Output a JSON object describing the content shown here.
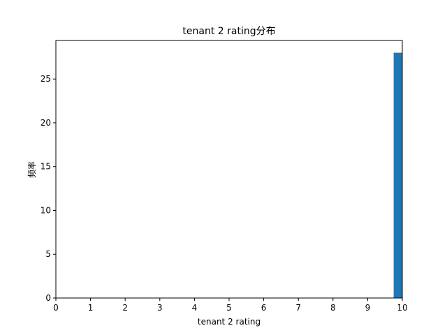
{
  "chart_data": {
    "type": "bar",
    "title": "tenant 2 rating分布",
    "xlabel": "tenant 2 rating",
    "ylabel": "频率",
    "xlim": [
      0,
      10
    ],
    "ylim": [
      0,
      29.4
    ],
    "xticks": [
      "0",
      "1",
      "2",
      "3",
      "4",
      "5",
      "6",
      "7",
      "8",
      "9",
      "10"
    ],
    "yticks": [
      "0",
      "5",
      "10",
      "15",
      "20",
      "25"
    ],
    "bins": [
      {
        "x0": 9.75,
        "x1": 10.0,
        "count": 28
      }
    ],
    "bar_color": "#1f77b4",
    "grid": false,
    "legend": false
  }
}
